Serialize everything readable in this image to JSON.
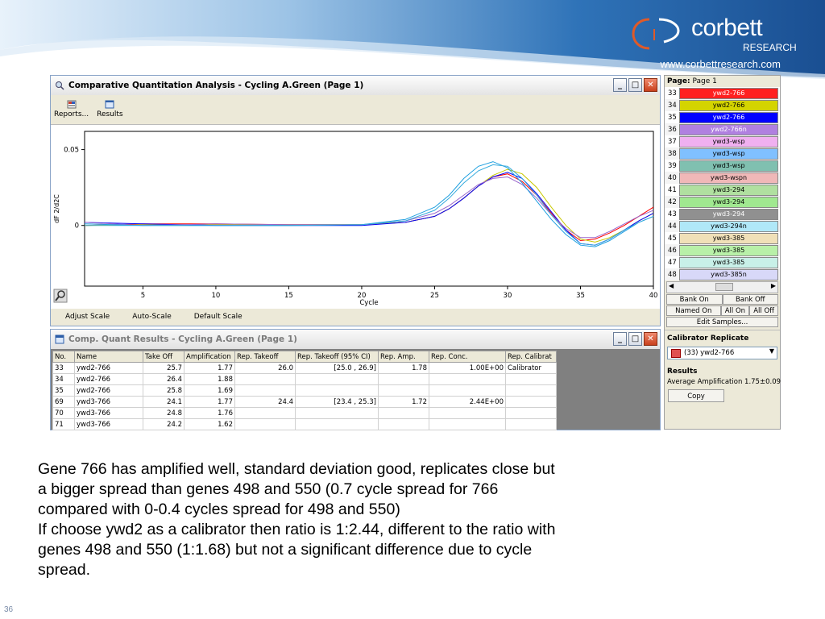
{
  "logo": {
    "word": "corbett",
    "sub": "RESEARCH"
  },
  "site_url": "www.corbettresearch.com",
  "analysis_window": {
    "title": "Comparative Quantitation Analysis - Cycling A.Green (Page 1)",
    "toolbar": [
      {
        "label": "Reports...",
        "icon": "reports-icon"
      },
      {
        "label": "Results",
        "icon": "results-icon"
      }
    ],
    "bottom_buttons": [
      "Adjust Scale",
      "Auto-Scale",
      "Default Scale"
    ]
  },
  "chart_data": {
    "type": "line",
    "ylabel": "dF 2/d2C",
    "xlabel": "Cycle",
    "x_ticks": [
      5,
      10,
      15,
      20,
      25,
      30,
      35,
      40
    ],
    "y_ticks": [
      {
        "value": 0.05,
        "label": "0.05"
      },
      {
        "value": 0,
        "label": "0"
      }
    ],
    "xlim": [
      1,
      40
    ],
    "ylim": [
      -0.04,
      0.062
    ],
    "grid": false,
    "x": [
      1,
      5,
      10,
      15,
      20,
      23,
      25,
      26,
      27,
      28,
      29,
      30,
      31,
      32,
      33,
      34,
      35,
      36,
      37,
      38,
      39,
      40
    ],
    "series": [
      {
        "color": "#ff0000",
        "values": [
          0,
          0.001,
          0.001,
          0.0005,
          0.0005,
          0.002,
          0.006,
          0.011,
          0.018,
          0.026,
          0.032,
          0.034,
          0.029,
          0.02,
          0.008,
          -0.003,
          -0.01,
          -0.009,
          -0.005,
          0.0,
          0.006,
          0.012
        ]
      },
      {
        "color": "#c8c800",
        "values": [
          0,
          0.0005,
          0.0005,
          0.0005,
          0.0005,
          0.002,
          0.006,
          0.011,
          0.018,
          0.026,
          0.033,
          0.037,
          0.034,
          0.025,
          0.012,
          0.0,
          -0.009,
          -0.011,
          -0.008,
          -0.003,
          0.003,
          0.008
        ]
      },
      {
        "color": "#0000ff",
        "values": [
          0.002,
          0.001,
          0.0,
          0.0,
          0.0,
          0.002,
          0.006,
          0.011,
          0.018,
          0.026,
          0.032,
          0.035,
          0.031,
          0.021,
          0.009,
          -0.003,
          -0.012,
          -0.013,
          -0.009,
          -0.003,
          0.003,
          0.008
        ]
      },
      {
        "color": "#9966cc",
        "values": [
          0.002,
          0.0,
          0.001,
          0.0005,
          0.0005,
          0.003,
          0.008,
          0.013,
          0.02,
          0.027,
          0.031,
          0.032,
          0.027,
          0.018,
          0.007,
          -0.002,
          -0.008,
          -0.008,
          -0.004,
          0.001,
          0.006,
          0.01
        ]
      },
      {
        "color": "#1fa0e0",
        "values": [
          0.001,
          0.0,
          0.0,
          0.0,
          0.0005,
          0.004,
          0.012,
          0.02,
          0.031,
          0.039,
          0.042,
          0.038,
          0.028,
          0.016,
          0.004,
          -0.006,
          -0.013,
          -0.014,
          -0.01,
          -0.004,
          0.002,
          0.006
        ]
      },
      {
        "color": "#33aadd",
        "values": [
          0.0,
          0.0,
          0.0,
          0.0,
          0.0005,
          0.003,
          0.01,
          0.018,
          0.028,
          0.036,
          0.04,
          0.039,
          0.031,
          0.02,
          0.007,
          -0.004,
          -0.012,
          -0.013,
          -0.009,
          -0.003,
          0.002,
          0.006
        ]
      }
    ]
  },
  "results_window": {
    "title": "Comp. Quant Results - Cycling A.Green (Page 1)",
    "columns": [
      "No.",
      "Name",
      "Take Off",
      "Amplification",
      "Rep. Takeoff",
      "Rep. Takeoff (95% CI)",
      "Rep. Amp.",
      "Rep. Conc.",
      "Rep. Calibrat"
    ],
    "rows": [
      [
        "33",
        "ywd2-766",
        "25.7",
        "1.77",
        "26.0",
        "[25.0 , 26.9]",
        "1.78",
        "1.00E+00",
        "Calibrator"
      ],
      [
        "34",
        "ywd2-766",
        "26.4",
        "1.88",
        "",
        "",
        "",
        "",
        ""
      ],
      [
        "35",
        "ywd2-766",
        "25.8",
        "1.69",
        "",
        "",
        "",
        "",
        ""
      ],
      [
        "69",
        "ywd3-766",
        "24.1",
        "1.77",
        "24.4",
        "[23.4 , 25.3]",
        "1.72",
        "2.44E+00",
        ""
      ],
      [
        "70",
        "ywd3-766",
        "24.8",
        "1.76",
        "",
        "",
        "",
        "",
        ""
      ],
      [
        "71",
        "ywd3-766",
        "24.2",
        "1.62",
        "",
        "",
        "",
        "",
        ""
      ]
    ]
  },
  "side_panel": {
    "page_label": "Page:",
    "page_value": "Page 1",
    "samples": [
      {
        "num": "33",
        "name": "ywd2-766",
        "color": "#ff2020"
      },
      {
        "num": "34",
        "name": "ywd2-766",
        "color": "#d4d400"
      },
      {
        "num": "35",
        "name": "ywd2-766",
        "color": "#0000ff"
      },
      {
        "num": "36",
        "name": "ywd2-766n",
        "color": "#b080e0"
      },
      {
        "num": "37",
        "name": "ywd3-wsp",
        "color": "#f0b0f0"
      },
      {
        "num": "38",
        "name": "ywd3-wsp",
        "color": "#80c0ff"
      },
      {
        "num": "39",
        "name": "ywd3-wsp",
        "color": "#80c0b0"
      },
      {
        "num": "40",
        "name": "ywd3-wspn",
        "color": "#f0b8b8"
      },
      {
        "num": "41",
        "name": "ywd3-294",
        "color": "#b0e0a0"
      },
      {
        "num": "42",
        "name": "ywd3-294",
        "color": "#a0e890"
      },
      {
        "num": "43",
        "name": "ywd3-294",
        "color": "#909090"
      },
      {
        "num": "44",
        "name": "ywd3-294n",
        "color": "#b0e8f8"
      },
      {
        "num": "45",
        "name": "ywd3-385",
        "color": "#f0e0b8"
      },
      {
        "num": "46",
        "name": "ywd3-385",
        "color": "#b8f0a8"
      },
      {
        "num": "47",
        "name": "ywd3-385",
        "color": "#c8f0e8"
      },
      {
        "num": "48",
        "name": "ywd3-385n",
        "color": "#d8d8f8"
      }
    ],
    "bank_on": "Bank On",
    "bank_off": "Bank Off",
    "named_on": "Named On",
    "all_on": "All On",
    "all_off": "All Off",
    "edit_samples": "Edit Samples...",
    "calibrator_title": "Calibrator Replicate",
    "calibrator_value": "(33) ywd2-766",
    "results_title": "Results",
    "average_amp": "Average Amplification 1.75±0.09",
    "copy": "Copy"
  },
  "body_lines": [
    "Gene 766 has amplified well, standard deviation good, replicates close but",
    "a bigger spread than genes 498 and 550 (0.7 cycle spread for 766",
    "compared with 0-0.4 cycles spread for 498 and 550)",
    "If choose ywd2 as a calibrator then ratio is 1:2.44, different to the ratio with",
    "genes 498 and 550 (1:1.68) but not a significant difference due to cycle",
    "spread."
  ],
  "slide_number": "36"
}
